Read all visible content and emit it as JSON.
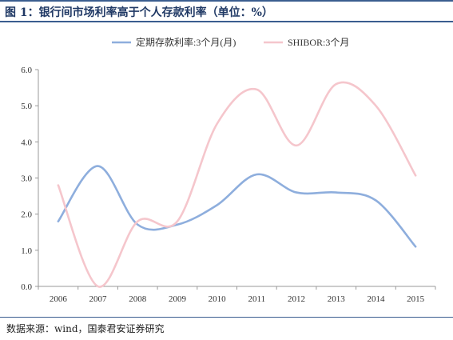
{
  "header": {
    "title": "图 1：银行间市场利率高于个人存款利率（单位：%）"
  },
  "footer": {
    "source": "数据来源：wind，国泰君安证券研究"
  },
  "chart_data": {
    "type": "line",
    "title": "银行间市场利率高于个人存款利率（单位：%）",
    "xlabel": "",
    "ylabel": "",
    "x": [
      "2006",
      "2007",
      "2008",
      "2009",
      "2010",
      "2011",
      "2012",
      "2013",
      "2014",
      "2015"
    ],
    "ylim": [
      0,
      6
    ],
    "yticks": [
      "0.0",
      "1.0",
      "2.0",
      "3.0",
      "4.0",
      "5.0",
      "6.0"
    ],
    "grid": false,
    "legend_position": "top-center",
    "series": [
      {
        "name": "定期存款利率:3个月(月)",
        "color": "#8eaedd",
        "values": [
          1.8,
          3.33,
          1.71,
          1.71,
          2.25,
          3.1,
          2.6,
          2.6,
          2.38,
          1.1
        ]
      },
      {
        "name": "SHIBOR:3个月",
        "color": "#f5c6cc",
        "values": [
          2.8,
          0.0,
          1.8,
          1.8,
          4.5,
          5.45,
          3.9,
          5.6,
          5.0,
          3.07
        ]
      }
    ]
  }
}
